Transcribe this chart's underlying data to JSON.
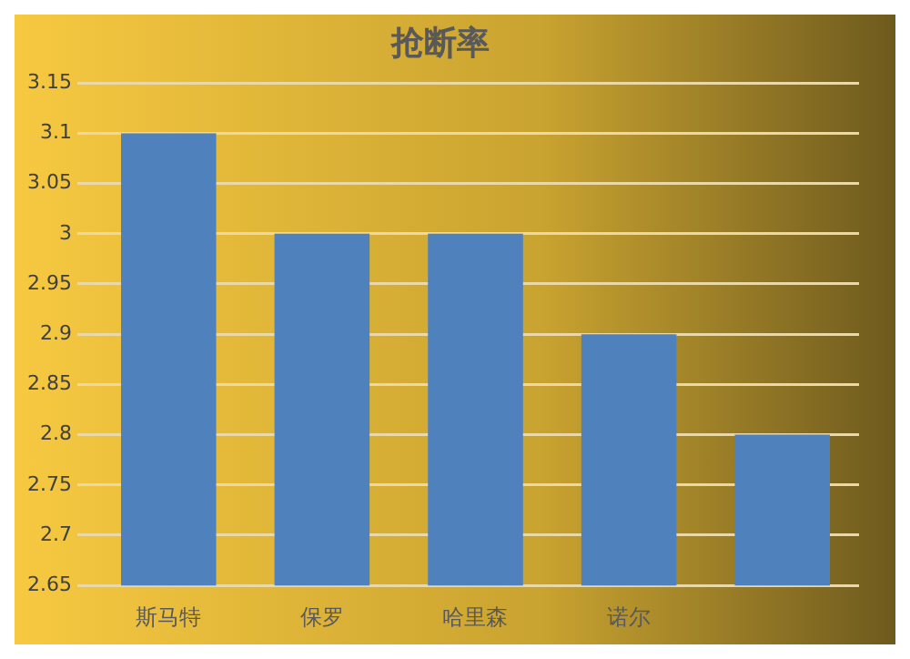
{
  "chart_data": {
    "type": "bar",
    "title": "抢断率",
    "categories": [
      "斯马特",
      "保罗",
      "哈里森",
      "诺尔",
      null
    ],
    "values": [
      3.1,
      3.0,
      3.0,
      2.9,
      2.8
    ],
    "color": "#4f81bd",
    "ylim": [
      2.65,
      3.15
    ],
    "yticks": [
      2.65,
      2.7,
      2.75,
      2.8,
      2.85,
      2.9,
      2.95,
      3,
      3.05,
      3.1,
      3.15
    ],
    "grid": "y"
  }
}
